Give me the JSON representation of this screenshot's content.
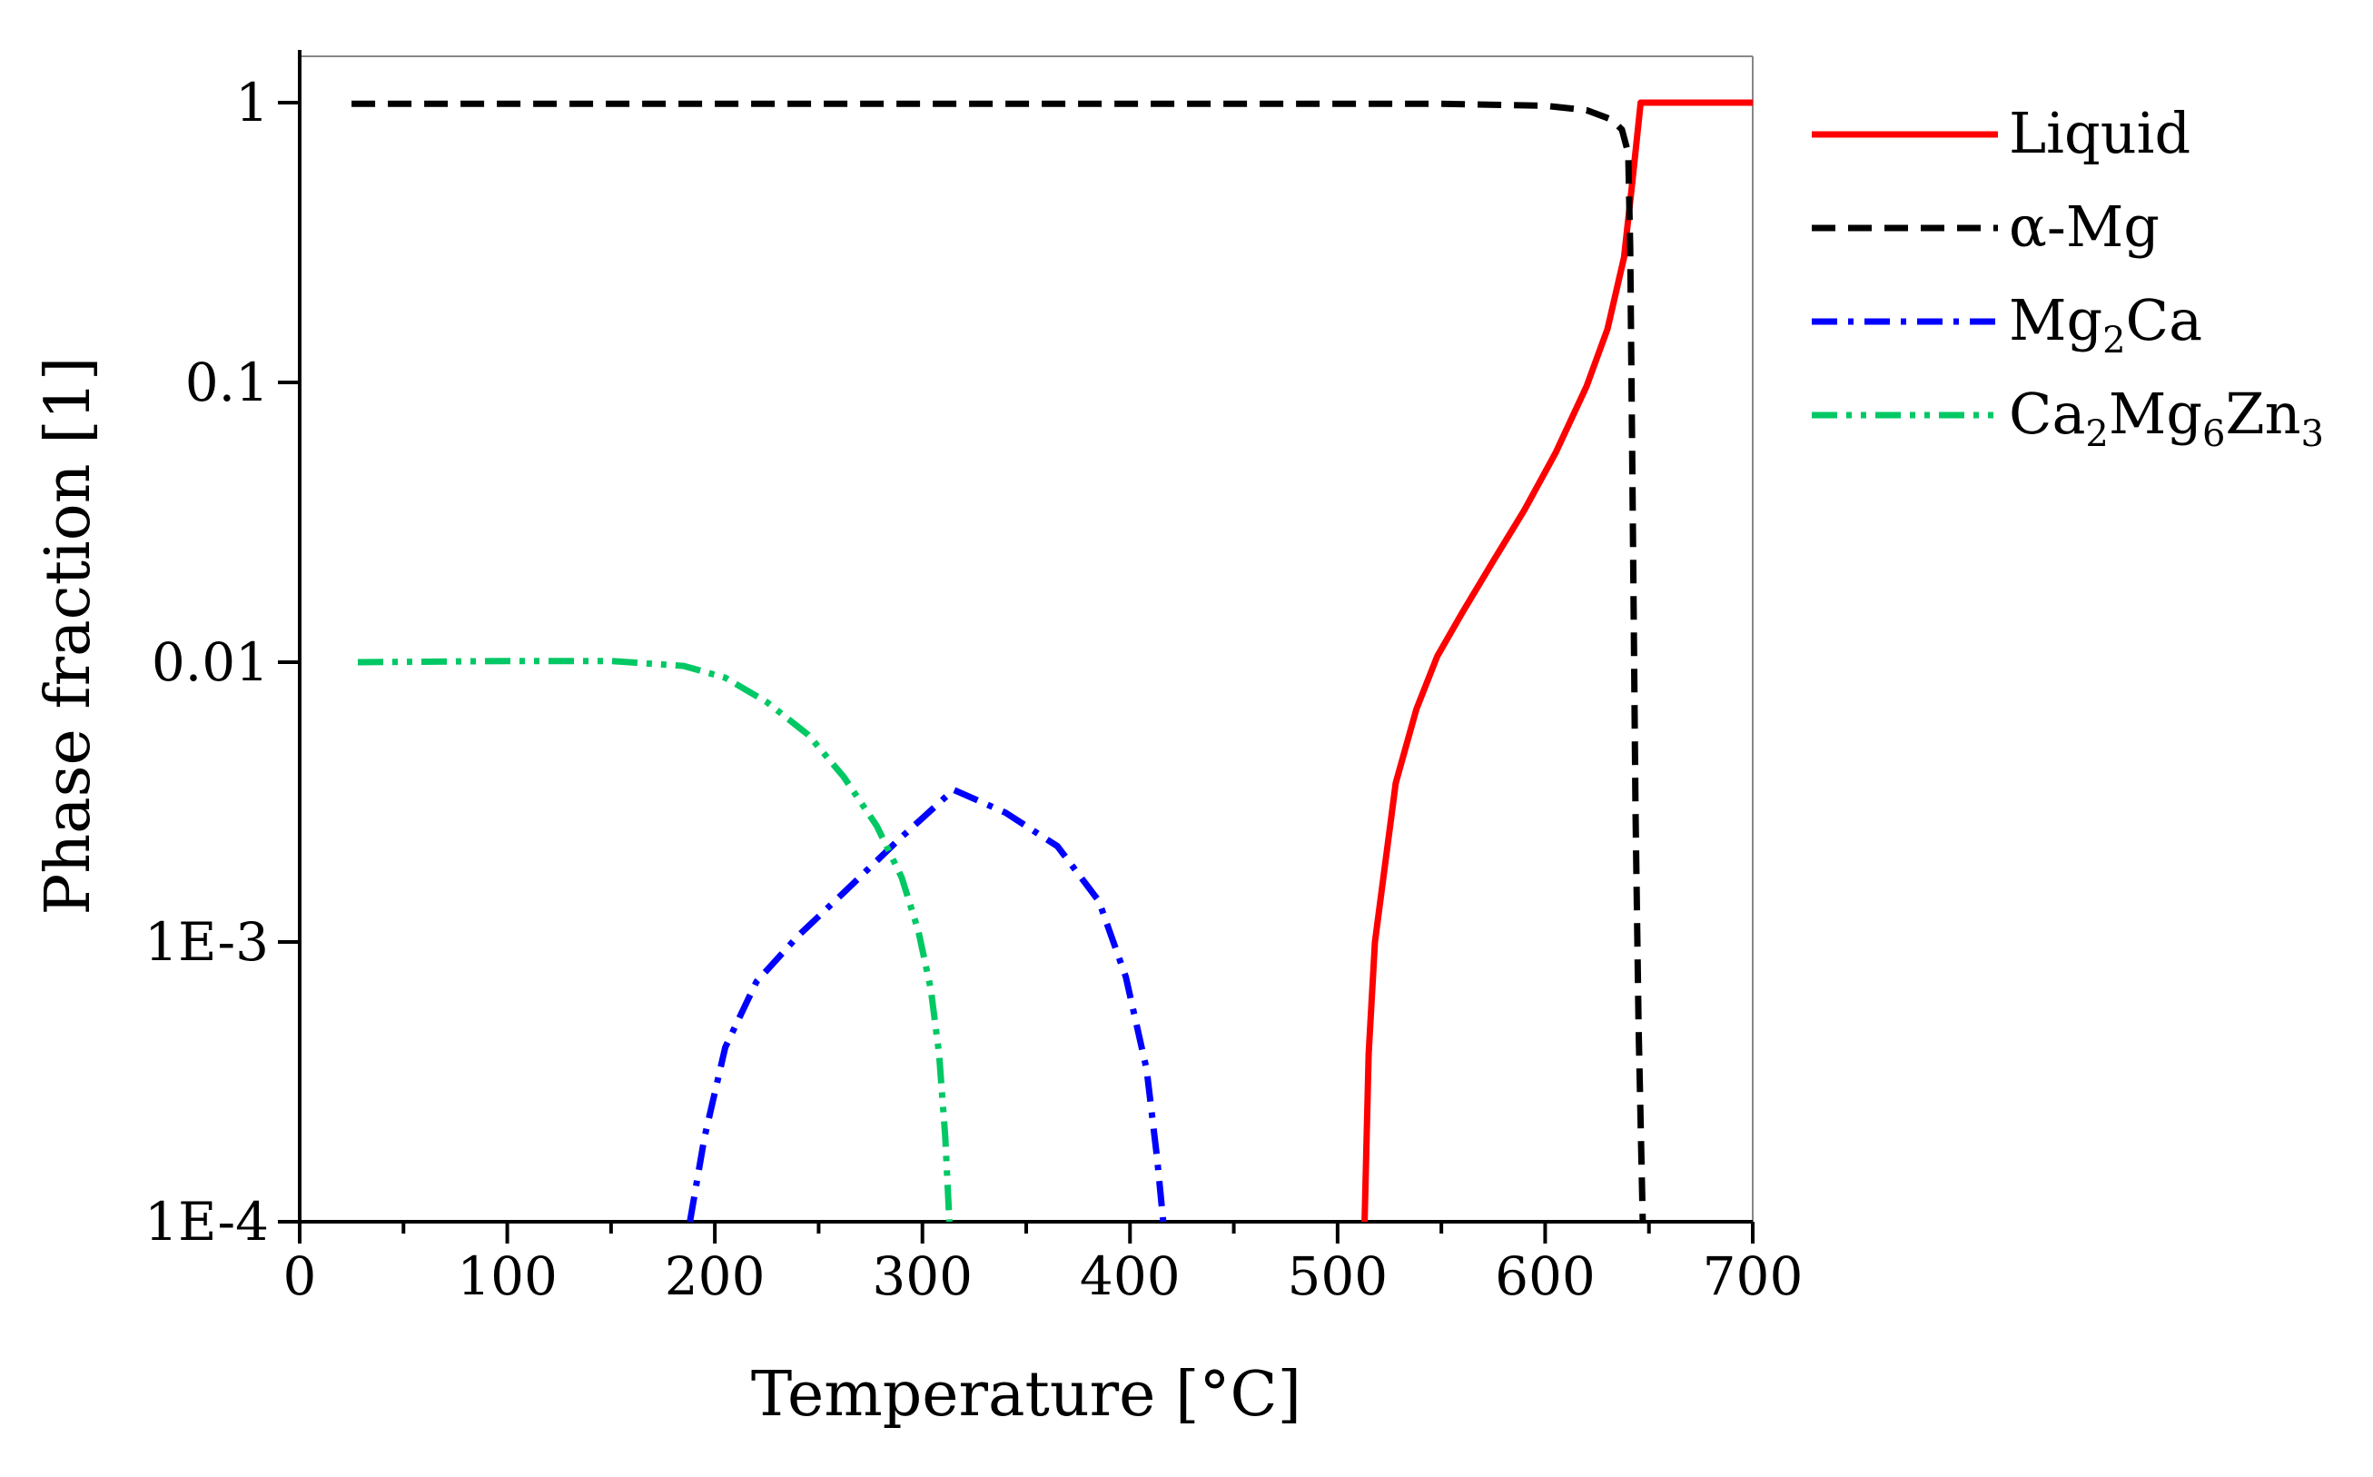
{
  "chart_data": {
    "type": "line",
    "title": "",
    "xlabel": "Temperature [°C]",
    "ylabel": "Phase fraction [1]",
    "xlim": [
      0,
      700
    ],
    "ylim": [
      0.0001,
      1.5
    ],
    "yscale": "log",
    "x_ticks": [
      0,
      100,
      200,
      300,
      400,
      500,
      600,
      700
    ],
    "x_tick_labels": [
      "0",
      "100",
      "200",
      "300",
      "400",
      "500",
      "600",
      "700"
    ],
    "y_ticks": [
      0.0001,
      0.001,
      0.01,
      0.1,
      1
    ],
    "y_tick_labels": [
      "1E-4",
      "1E-3",
      "0.01",
      "0.1",
      "1"
    ],
    "legend_position": "right",
    "series": [
      {
        "name": "Liquid",
        "legend_main": "Liquid",
        "legend_parts": [],
        "color": "#ff0000",
        "dash": "solid",
        "x": [
          513,
          515,
          518,
          528,
          538,
          548,
          560,
          575,
          590,
          605,
          620,
          630,
          638,
          642,
          646,
          700
        ],
        "y": [
          0.0001,
          0.0004,
          0.001,
          0.0037,
          0.0068,
          0.0105,
          0.015,
          0.023,
          0.035,
          0.056,
          0.097,
          0.155,
          0.28,
          0.52,
          1,
          1
        ]
      },
      {
        "name": "α-Mg",
        "legend_main": "α-Mg",
        "legend_parts": [],
        "color": "#000000",
        "dash": "dashed",
        "x": [
          25,
          200,
          400,
          550,
          600,
          620,
          632,
          637,
          640,
          641,
          642,
          643.5,
          645,
          647
        ],
        "y": [
          0.99,
          0.99,
          0.99,
          0.99,
          0.975,
          0.94,
          0.87,
          0.8,
          0.66,
          0.3,
          0.05,
          0.003,
          0.0005,
          0.0001
        ]
      },
      {
        "name": "Mg2Ca",
        "legend_main": "",
        "legend_parts": [
          [
            "Mg",
            ""
          ],
          [
            "2",
            "sub"
          ],
          [
            "Ca",
            ""
          ]
        ],
        "color": "#0000ff",
        "dash": "dashdot",
        "x": [
          188,
          195,
          205,
          220,
          240,
          262,
          288,
          315,
          340,
          365,
          385,
          398,
          408,
          413,
          416
        ],
        "y": [
          0.0001,
          0.0002,
          0.00042,
          0.00072,
          0.00105,
          0.0015,
          0.0023,
          0.0035,
          0.0029,
          0.0022,
          0.0014,
          0.00075,
          0.00035,
          0.00017,
          0.0001
        ]
      },
      {
        "name": "Ca2Mg6Zn3",
        "legend_main": "",
        "legend_parts": [
          [
            "Ca",
            ""
          ],
          [
            "2",
            "sub"
          ],
          [
            "Mg",
            ""
          ],
          [
            "6",
            "sub"
          ],
          [
            "Zn",
            ""
          ],
          [
            "3",
            "sub"
          ]
        ],
        "color": "#00c864",
        "dash": "dashdotdot",
        "x": [
          28,
          100,
          150,
          185,
          205,
          225,
          245,
          262,
          278,
          290,
          298,
          304,
          308,
          311,
          313
        ],
        "y": [
          0.01,
          0.0101,
          0.0101,
          0.0097,
          0.0088,
          0.0072,
          0.0055,
          0.0039,
          0.0026,
          0.0017,
          0.0011,
          0.00068,
          0.0004,
          0.0002,
          0.0001
        ]
      }
    ]
  }
}
